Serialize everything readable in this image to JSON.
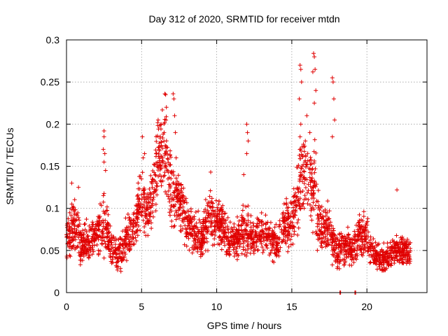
{
  "chart_data": {
    "type": "scatter",
    "title": "Day 312 of 2020, SRMTID for receiver mtdn",
    "xlabel": "GPS time / hours",
    "ylabel": "SRMTID / TECUs",
    "xlim": [
      0,
      24
    ],
    "ylim": [
      0,
      0.3
    ],
    "x_ticks": [
      0,
      5,
      10,
      15,
      20
    ],
    "x_tick_labels": [
      "0",
      "5",
      "10",
      "15",
      "20"
    ],
    "y_ticks": [
      0,
      0.05,
      0.1,
      0.15,
      0.2,
      0.25,
      0.3
    ],
    "y_tick_labels": [
      "0",
      "0.05",
      "0.1",
      "0.15",
      "0.2",
      "0.25",
      "0.3"
    ],
    "grid": true,
    "marker": "+",
    "series": [
      {
        "name": "SRMTID",
        "color": "#e00000",
        "profile_note": "approximate envelope of the dense point cloud (x hours, typical value, spread)",
        "profile": [
          [
            0.0,
            0.065,
            0.03
          ],
          [
            0.3,
            0.075,
            0.035
          ],
          [
            0.6,
            0.08,
            0.04
          ],
          [
            1.0,
            0.055,
            0.03
          ],
          [
            1.5,
            0.06,
            0.025
          ],
          [
            2.0,
            0.07,
            0.025
          ],
          [
            2.5,
            0.085,
            0.05
          ],
          [
            3.0,
            0.05,
            0.025
          ],
          [
            3.5,
            0.045,
            0.025
          ],
          [
            4.0,
            0.06,
            0.03
          ],
          [
            4.5,
            0.08,
            0.03
          ],
          [
            5.0,
            0.11,
            0.045
          ],
          [
            5.5,
            0.095,
            0.035
          ],
          [
            6.0,
            0.15,
            0.05
          ],
          [
            6.5,
            0.17,
            0.055
          ],
          [
            7.0,
            0.12,
            0.06
          ],
          [
            7.5,
            0.115,
            0.04
          ],
          [
            8.0,
            0.085,
            0.03
          ],
          [
            8.5,
            0.07,
            0.03
          ],
          [
            9.0,
            0.065,
            0.025
          ],
          [
            9.5,
            0.09,
            0.035
          ],
          [
            10.0,
            0.085,
            0.03
          ],
          [
            10.5,
            0.075,
            0.03
          ],
          [
            11.0,
            0.06,
            0.025
          ],
          [
            11.5,
            0.065,
            0.03
          ],
          [
            12.0,
            0.075,
            0.045
          ],
          [
            12.5,
            0.065,
            0.025
          ],
          [
            13.0,
            0.07,
            0.025
          ],
          [
            13.5,
            0.065,
            0.025
          ],
          [
            14.0,
            0.06,
            0.03
          ],
          [
            14.5,
            0.08,
            0.035
          ],
          [
            15.0,
            0.085,
            0.035
          ],
          [
            15.5,
            0.13,
            0.06
          ],
          [
            16.0,
            0.14,
            0.04
          ],
          [
            16.5,
            0.12,
            0.07
          ],
          [
            17.0,
            0.07,
            0.03
          ],
          [
            17.5,
            0.075,
            0.04
          ],
          [
            18.0,
            0.05,
            0.025
          ],
          [
            18.5,
            0.055,
            0.025
          ],
          [
            19.0,
            0.05,
            0.025
          ],
          [
            19.5,
            0.07,
            0.03
          ],
          [
            20.0,
            0.065,
            0.03
          ],
          [
            20.5,
            0.045,
            0.02
          ],
          [
            21.0,
            0.04,
            0.02
          ],
          [
            21.5,
            0.045,
            0.02
          ],
          [
            22.0,
            0.05,
            0.02
          ],
          [
            22.5,
            0.05,
            0.02
          ],
          [
            22.9,
            0.045,
            0.02
          ]
        ],
        "peak_points": [
          [
            2.5,
            0.192
          ],
          [
            2.5,
            0.185
          ],
          [
            2.45,
            0.17
          ],
          [
            2.55,
            0.165
          ],
          [
            2.5,
            0.155
          ],
          [
            2.6,
            0.145
          ],
          [
            0.35,
            0.13
          ],
          [
            0.8,
            0.125
          ],
          [
            6.1,
            0.205
          ],
          [
            6.2,
            0.198
          ],
          [
            6.3,
            0.2
          ],
          [
            6.55,
            0.236
          ],
          [
            6.6,
            0.235
          ],
          [
            6.65,
            0.22
          ],
          [
            6.5,
            0.19
          ],
          [
            7.1,
            0.236
          ],
          [
            7.15,
            0.23
          ],
          [
            7.2,
            0.21
          ],
          [
            7.25,
            0.19
          ],
          [
            7.3,
            0.16
          ],
          [
            5.05,
            0.185
          ],
          [
            5.2,
            0.165
          ],
          [
            5.1,
            0.16
          ],
          [
            9.6,
            0.143
          ],
          [
            12.0,
            0.2
          ],
          [
            12.05,
            0.19
          ],
          [
            12.1,
            0.18
          ],
          [
            12.0,
            0.165
          ],
          [
            11.8,
            0.14
          ],
          [
            15.55,
            0.27
          ],
          [
            15.6,
            0.265
          ],
          [
            15.65,
            0.25
          ],
          [
            15.5,
            0.23
          ],
          [
            15.6,
            0.2
          ],
          [
            15.55,
            0.185
          ],
          [
            16.45,
            0.284
          ],
          [
            16.5,
            0.28
          ],
          [
            16.55,
            0.265
          ],
          [
            16.4,
            0.262
          ],
          [
            16.6,
            0.24
          ],
          [
            16.5,
            0.225
          ],
          [
            17.7,
            0.255
          ],
          [
            17.75,
            0.25
          ],
          [
            17.8,
            0.23
          ],
          [
            17.85,
            0.205
          ],
          [
            17.7,
            0.185
          ],
          [
            16.0,
            0.21
          ],
          [
            16.2,
            0.19
          ],
          [
            15.9,
            0.18
          ],
          [
            22.0,
            0.122
          ],
          [
            18.2,
            0.0
          ],
          [
            18.25,
            0.0
          ],
          [
            19.2,
            0.0
          ],
          [
            19.25,
            0.0
          ]
        ]
      }
    ]
  }
}
